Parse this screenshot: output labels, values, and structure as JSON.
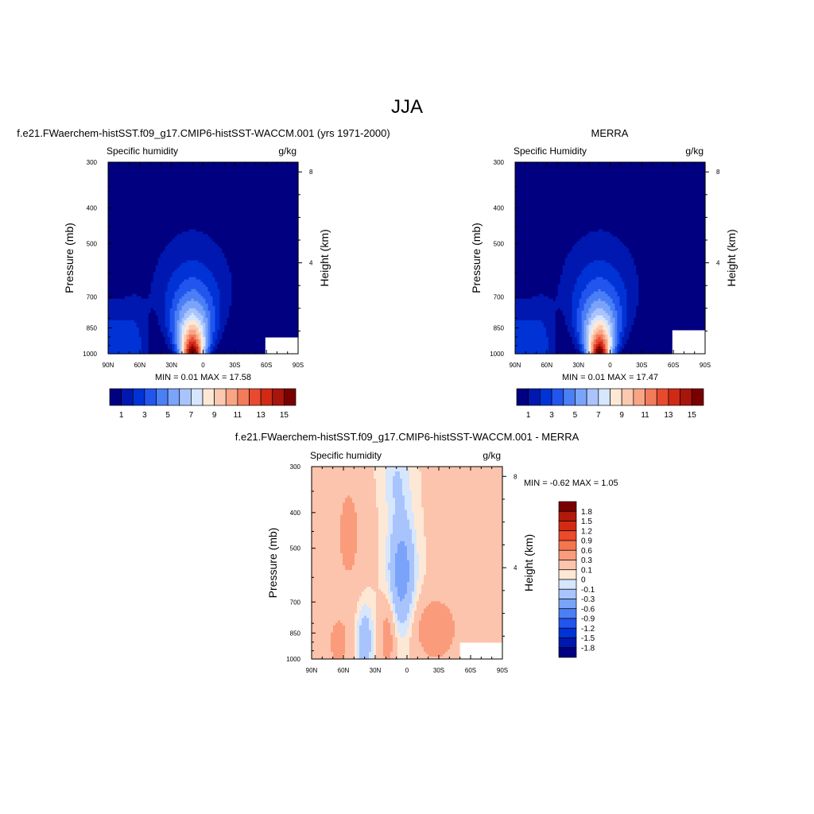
{
  "figure": {
    "title": "JJA"
  },
  "panels": [
    {
      "id": "model",
      "title": "f.e21.FWaerchem-histSST.f09_g17.CMIP6-histSST-WACCM.001 (yrs 1971-2000)",
      "left_label": "Specific humidity",
      "right_label": "g/kg",
      "stats_text": "MIN =   0.01  MAX =  17.58"
    },
    {
      "id": "obs",
      "title": "MERRA",
      "left_label": "Specific Humidity",
      "right_label": "g/kg",
      "stats_text": "MIN =   0.01  MAX =  17.47"
    },
    {
      "id": "diff",
      "title": "f.e21.FWaerchem-histSST.f09_g17.CMIP6-histSST-WACCM.001 - MERRA",
      "left_label": "Specific humidity",
      "right_label": "g/kg",
      "stats_text": "MIN =  -0.62  MAX =   1.05"
    }
  ],
  "chart_data": [
    {
      "type": "heatmap",
      "panel": "model",
      "variable": "Specific humidity",
      "units": "g/kg",
      "ylabel": "Pressure (mb)",
      "ylabel_right": "Height (km)",
      "x_ticks": [
        "90N",
        "60N",
        "30N",
        "0",
        "30S",
        "60S",
        "90S"
      ],
      "x_range": [
        90,
        -90
      ],
      "y_ticks": [
        "300",
        "400",
        "500",
        "700",
        "850",
        "1000"
      ],
      "y_tick_values": [
        300,
        400,
        500,
        700,
        850,
        1000
      ],
      "y_range": [
        1000,
        300
      ],
      "y_scale": "log",
      "right_ticks": [
        "8",
        "4"
      ],
      "min": 0.01,
      "max": 17.58,
      "peak_latitude": 10,
      "contour_levels": [
        1,
        2,
        3,
        4,
        5,
        6,
        7,
        8,
        9,
        10,
        11,
        12,
        13,
        14,
        15
      ],
      "colorbar_labels": [
        "1",
        "3",
        "5",
        "7",
        "9",
        "11",
        "13",
        "15"
      ]
    },
    {
      "type": "heatmap",
      "panel": "obs",
      "variable": "Specific Humidity",
      "units": "g/kg",
      "ylabel": "Pressure (mb)",
      "ylabel_right": "Height (km)",
      "x_ticks": [
        "90N",
        "60N",
        "30N",
        "0",
        "30S",
        "60S",
        "90S"
      ],
      "x_range": [
        90,
        -90
      ],
      "y_ticks": [
        "300",
        "400",
        "500",
        "700",
        "850",
        "1000"
      ],
      "y_tick_values": [
        300,
        400,
        500,
        700,
        850,
        1000
      ],
      "y_range": [
        1000,
        300
      ],
      "y_scale": "log",
      "right_ticks": [
        "8",
        "4"
      ],
      "min": 0.01,
      "max": 17.47,
      "peak_latitude": 10,
      "contour_levels": [
        1,
        2,
        3,
        4,
        5,
        6,
        7,
        8,
        9,
        10,
        11,
        12,
        13,
        14,
        15
      ],
      "colorbar_labels": [
        "1",
        "3",
        "5",
        "7",
        "9",
        "11",
        "13",
        "15"
      ]
    },
    {
      "type": "heatmap",
      "panel": "diff",
      "variable": "Specific humidity",
      "units": "g/kg",
      "ylabel": "Pressure (mb)",
      "ylabel_right": "Height (km)",
      "x_ticks": [
        "90N",
        "60N",
        "30N",
        "0",
        "30S",
        "60S",
        "90S"
      ],
      "x_range": [
        90,
        -90
      ],
      "y_ticks": [
        "300",
        "400",
        "500",
        "700",
        "850",
        "1000"
      ],
      "y_tick_values": [
        300,
        400,
        500,
        700,
        850,
        1000
      ],
      "y_range": [
        1000,
        300
      ],
      "y_scale": "log",
      "right_ticks": [
        "8",
        "4"
      ],
      "min": -0.62,
      "max": 1.05,
      "contour_levels": [
        -1.8,
        -1.5,
        -1.2,
        -0.9,
        -0.6,
        -0.3,
        -0.1,
        0,
        0.1,
        0.3,
        0.6,
        0.9,
        1.2,
        1.5,
        1.8
      ],
      "colorbar_labels": [
        "1.8",
        "1.5",
        "1.2",
        "0.9",
        "0.6",
        "0.3",
        "0.1",
        "0",
        "-0.1",
        "-0.3",
        "-0.6",
        "-0.9",
        "-1.2",
        "-1.5",
        "-1.8"
      ]
    }
  ],
  "colors": {
    "abs_palette": [
      "#000080",
      "#0018b0",
      "#0033d6",
      "#2255ee",
      "#4a7ff5",
      "#7aa3fa",
      "#a9c4fc",
      "#d6e6fd",
      "#fde8d6",
      "#fbc9b0",
      "#f8a584",
      "#f27b5a",
      "#e84a30",
      "#d02a15",
      "#a8150a",
      "#7a0000"
    ],
    "diff_palette": [
      "#7a0000",
      "#b01a0a",
      "#d42a14",
      "#ec4a2a",
      "#f5754e",
      "#fa9c7c",
      "#fcc4ac",
      "#fde8d6",
      "#d6e6fd",
      "#a9c4fc",
      "#7aa3fa",
      "#4a7ff5",
      "#2255ee",
      "#0033d6",
      "#0018b0",
      "#000080"
    ]
  }
}
